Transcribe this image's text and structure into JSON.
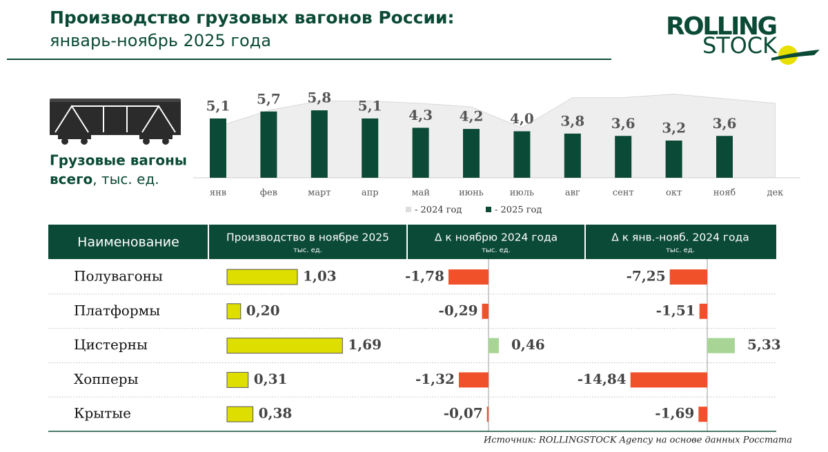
{
  "header": {
    "title": "Производство грузовых вагонов России:",
    "subtitle": "январь-ноябрь 2025 года"
  },
  "logo": {
    "line1": "ROLLING",
    "line2": "STOCK"
  },
  "chart_data": {
    "type": "bar",
    "label_line1": "Грузовые вагоны",
    "label_bold": "всего",
    "label_unit": ", тыс. ед.",
    "categories": [
      "янв",
      "фев",
      "март",
      "апр",
      "май",
      "июнь",
      "июль",
      "авг",
      "сент",
      "окт",
      "нояб",
      "дек"
    ],
    "ylim": [
      0,
      8
    ],
    "series": [
      {
        "name": "- 2024 год",
        "color": "#eeeeee",
        "legend_color": "#dddddd",
        "values": [
          4.4,
          5.8,
          6.6,
          6.6,
          6.4,
          6.1,
          4.3,
          6.9,
          6.9,
          7.2,
          6.8,
          6.4
        ]
      },
      {
        "name": "- 2025 год",
        "color": "#0b4a36",
        "values": [
          5.1,
          5.7,
          5.8,
          5.1,
          4.3,
          4.2,
          4.0,
          3.8,
          3.6,
          3.2,
          3.6,
          null
        ],
        "value_labels": [
          "5,1",
          "5,7",
          "5,8",
          "5,1",
          "4,3",
          "4,2",
          "4,0",
          "3,8",
          "3,6",
          "3,2",
          "3,6",
          null
        ]
      }
    ]
  },
  "table": {
    "name_header": "Наименование",
    "columns": [
      {
        "title": "Производство в ноябре 2025",
        "unit": "тыс. ед."
      },
      {
        "title": "Δ   к ноябрю 2024 года",
        "unit": "тыс. ед."
      },
      {
        "title": "Δ к янв.-нояб. 2024 года",
        "unit": "тыс. ед."
      }
    ],
    "colors": {
      "production": "#dede00",
      "negative": "#f0502a",
      "positive": "#a8d596"
    },
    "rows": [
      {
        "name": "Полувагоны",
        "values": [
          1.03,
          -1.78,
          -7.25
        ],
        "value_labels": [
          "1,03",
          "-1,78",
          "-7,25"
        ]
      },
      {
        "name": "Платформы",
        "values": [
          0.2,
          -0.29,
          -1.51
        ],
        "value_labels": [
          "0,20",
          "-0,29",
          "-1,51"
        ]
      },
      {
        "name": "Цистерны",
        "values": [
          1.69,
          0.46,
          5.33
        ],
        "value_labels": [
          "1,69",
          "0,46",
          "5,33"
        ]
      },
      {
        "name": "Хопперы",
        "values": [
          0.31,
          -1.32,
          -14.84
        ],
        "value_labels": [
          "0,31",
          "-1,32",
          "-14,84"
        ]
      },
      {
        "name": "Крытые",
        "values": [
          0.38,
          -0.07,
          -1.69
        ],
        "value_labels": [
          "0,38",
          "-0,07",
          "-1,69"
        ]
      }
    ]
  },
  "source": "Источник: ROLLINGSTOCK Agency на основе данных Росстата"
}
